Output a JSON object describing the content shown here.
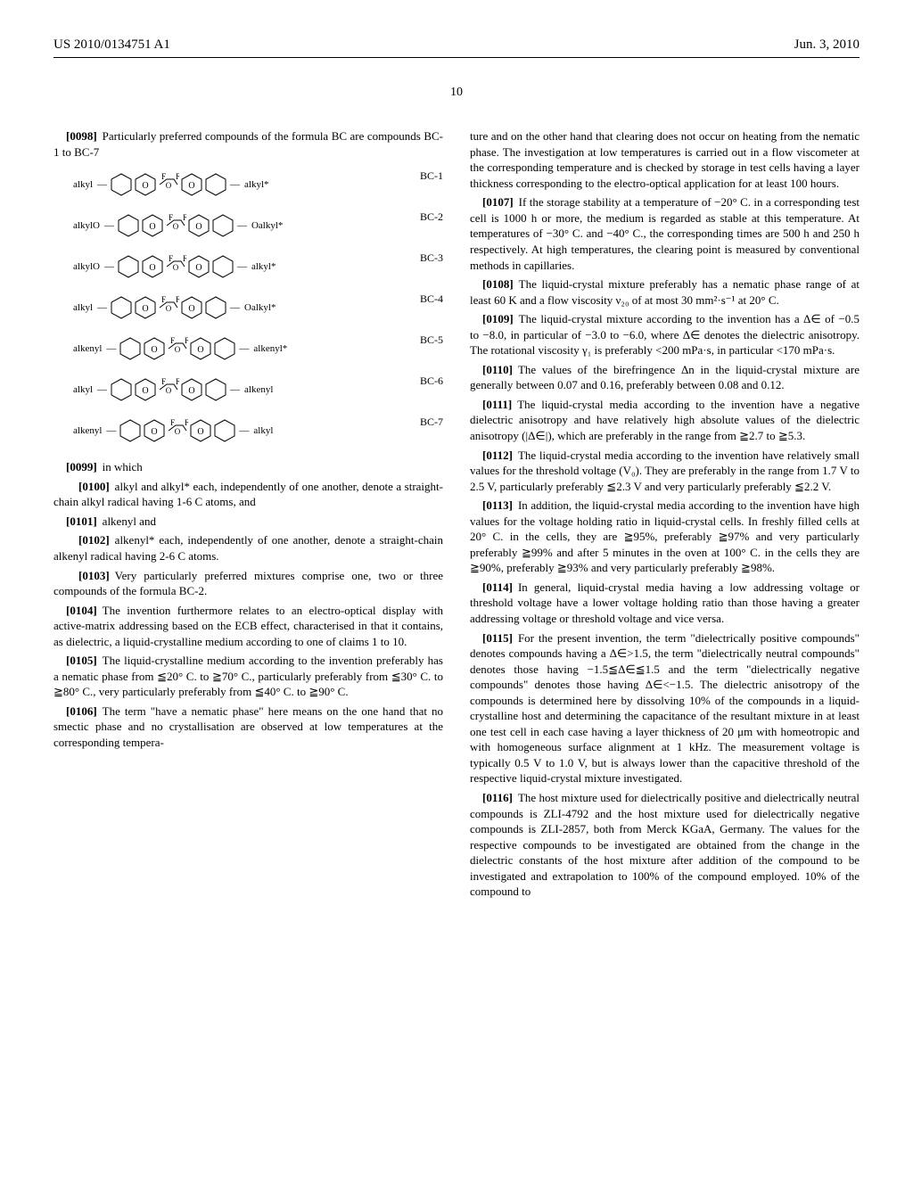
{
  "header": {
    "pub_number": "US 2010/0134751 A1",
    "pub_date": "Jun. 3, 2010"
  },
  "page_number": "10",
  "col1": {
    "intro_para": {
      "num": "[0098]",
      "text": "Particularly preferred compounds of the formula BC are compounds BC-1 to BC-7"
    },
    "diagrams": [
      {
        "label": "BC-1",
        "left": "alkyl",
        "right": "alkyl*"
      },
      {
        "label": "BC-2",
        "left": "alkylO",
        "right": "Oalkyl*"
      },
      {
        "label": "BC-3",
        "left": "alkylO",
        "right": "alkyl*"
      },
      {
        "label": "BC-4",
        "left": "alkyl",
        "right": "Oalkyl*"
      },
      {
        "label": "BC-5",
        "left": "alkenyl",
        "right": "alkenyl*"
      },
      {
        "label": "BC-6",
        "left": "alkyl",
        "right": "alkenyl"
      },
      {
        "label": "BC-7",
        "left": "alkenyl",
        "right": "alkyl"
      }
    ],
    "sub_F": "F",
    "sub_O": "O",
    "paras": [
      {
        "num": "[0099]",
        "text": "in which",
        "indent": false
      },
      {
        "num": "[0100]",
        "text": "alkyl and alkyl* each, independently of one another, denote a straight-chain alkyl radical having 1-6 C atoms, and",
        "indent": true
      },
      {
        "num": "[0101]",
        "text": "alkenyl and",
        "indent": false
      },
      {
        "num": "[0102]",
        "text": "alkenyl* each, independently of one another, denote a straight-chain alkenyl radical having 2-6 C atoms.",
        "indent": true
      },
      {
        "num": "[0103]",
        "text": "Very particularly preferred mixtures comprise one, two or three compounds of the formula BC-2.",
        "indent": true
      },
      {
        "num": "[0104]",
        "text": "The invention furthermore relates to an electro-optical display with active-matrix addressing based on the ECB effect, characterised in that it contains, as dielectric, a liquid-crystalline medium according to one of claims 1 to 10.",
        "indent": false
      },
      {
        "num": "[0105]",
        "text": "The liquid-crystalline medium according to the invention preferably has a nematic phase from ≦20° C. to ≧70° C., particularly preferably from ≦30° C. to ≧80° C., very particularly preferably from ≦40° C. to ≧90° C.",
        "indent": false
      },
      {
        "num": "[0106]",
        "text": "The term \"have a nematic phase\" here means on the one hand that no smectic phase and no crystallisation are observed at low temperatures at the corresponding tempera-",
        "indent": false
      }
    ]
  },
  "col2": {
    "cont": "ture and on the other hand that clearing does not occur on heating from the nematic phase. The investigation at low temperatures is carried out in a flow viscometer at the corresponding temperature and is checked by storage in test cells having a layer thickness corresponding to the electro-optical application for at least 100 hours.",
    "paras": [
      {
        "num": "[0107]",
        "text": "If the storage stability at a temperature of −20° C. in a corresponding test cell is 1000 h or more, the medium is regarded as stable at this temperature. At temperatures of −30° C. and −40° C., the corresponding times are 500 h and 250 h respectively. At high temperatures, the clearing point is measured by conventional methods in capillaries."
      },
      {
        "num": "[0108]",
        "text": "The liquid-crystal mixture preferably has a nematic phase range of at least 60 K and a flow viscosity ν₂₀ of at most 30 mm²·s⁻¹ at 20° C."
      },
      {
        "num": "[0109]",
        "text": "The liquid-crystal mixture according to the invention has a Δ∈ of −0.5 to −8.0, in particular of −3.0 to −6.0, where Δ∈ denotes the dielectric anisotropy. The rotational viscosity γ₁ is preferably <200 mPa·s, in particular <170 mPa·s."
      },
      {
        "num": "[0110]",
        "text": "The values of the birefringence Δn in the liquid-crystal mixture are generally between 0.07 and 0.16, preferably between 0.08 and 0.12."
      },
      {
        "num": "[0111]",
        "text": "The liquid-crystal media according to the invention have a negative dielectric anisotropy and have relatively high absolute values of the dielectric anisotropy (|Δ∈|), which are preferably in the range from ≧2.7 to ≧5.3."
      },
      {
        "num": "[0112]",
        "text": "The liquid-crystal media according to the invention have relatively small values for the threshold voltage (V₀). They are preferably in the range from 1.7 V to 2.5 V, particularly preferably ≦2.3 V and very particularly preferably ≦2.2 V."
      },
      {
        "num": "[0113]",
        "text": "In addition, the liquid-crystal media according to the invention have high values for the voltage holding ratio in liquid-crystal cells. In freshly filled cells at 20° C. in the cells, they are ≧95%, preferably ≧97% and very particularly preferably ≧99% and after 5 minutes in the oven at 100° C. in the cells they are ≧90%, preferably ≧93% and very particularly preferably ≧98%."
      },
      {
        "num": "[0114]",
        "text": "In general, liquid-crystal media having a low addressing voltage or threshold voltage have a lower voltage holding ratio than those having a greater addressing voltage or threshold voltage and vice versa."
      },
      {
        "num": "[0115]",
        "text": "For the present invention, the term \"dielectrically positive compounds\" denotes compounds having a Δ∈>1.5, the term \"dielectrically neutral compounds\" denotes those having −1.5≦Δ∈≦1.5 and the term \"dielectrically negative compounds\" denotes those having Δ∈<−1.5. The dielectric anisotropy of the compounds is determined here by dissolving 10% of the compounds in a liquid-crystalline host and determining the capacitance of the resultant mixture in at least one test cell in each case having a layer thickness of 20 μm with homeotropic and with homogeneous surface alignment at 1 kHz. The measurement voltage is typically 0.5 V to 1.0 V, but is always lower than the capacitive threshold of the respective liquid-crystal mixture investigated."
      },
      {
        "num": "[0116]",
        "text": "The host mixture used for dielectrically positive and dielectrically neutral compounds is ZLI-4792 and the host mixture used for dielectrically negative compounds is ZLI-2857, both from Merck KGaA, Germany. The values for the respective compounds to be investigated are obtained from the change in the dielectric constants of the host mixture after addition of the compound to be investigated and extrapolation to 100% of the compound employed. 10% of the compound to"
      }
    ]
  },
  "colors": {
    "text": "#000000",
    "bg": "#ffffff",
    "rule": "#000000"
  }
}
